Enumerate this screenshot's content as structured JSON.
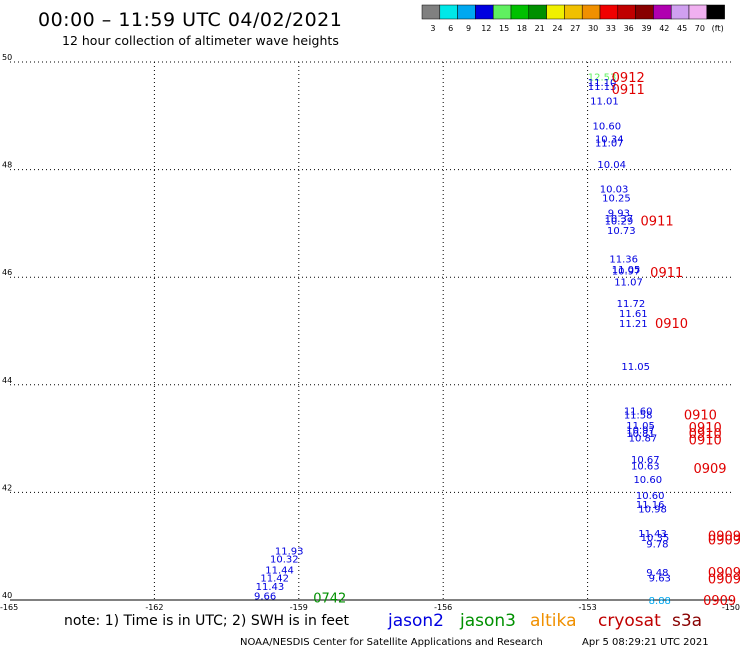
{
  "header": {
    "title": "00:00 – 11:59 UTC 04/02/2021",
    "subtitle": "12 hour collection of altimeter wave heights"
  },
  "legend_scale": {
    "labels": [
      "3",
      "6",
      "9",
      "12",
      "15",
      "18",
      "21",
      "24",
      "27",
      "30",
      "33",
      "36",
      "39",
      "42",
      "45",
      "70",
      "(ft)"
    ],
    "colors": [
      "#808080",
      "#00e8e8",
      "#00a8f0",
      "#0000e0",
      "#60f060",
      "#00c000",
      "#009000",
      "#f0f000",
      "#f0c000",
      "#f09000",
      "#f00000",
      "#c00000",
      "#880000",
      "#b000b0",
      "#d0a0f0",
      "#f0b0f0",
      "#000000"
    ]
  },
  "satellites": [
    {
      "name": "jason2",
      "color": "#0000e0"
    },
    {
      "name": "jason3",
      "color": "#009000"
    },
    {
      "name": "altika",
      "color": "#f09000"
    },
    {
      "name": "cryosat",
      "color": "#c00000"
    },
    {
      "name": "s3a",
      "color": "#880000"
    }
  ],
  "footer": {
    "note": "note: 1) Time is in UTC; 2) SWH is in feet",
    "credit": "NOAA/NESDIS Center for Satellite Applications and Research",
    "generated": "Apr  5 08:29:21 UTC 2021"
  },
  "chart_data": {
    "type": "scatter",
    "title": "00:00 – 11:59 UTC 04/02/2021",
    "subtitle": "12 hour collection of altimeter wave heights",
    "xlabel": "",
    "ylabel": "",
    "xlim": [
      -165,
      -150
    ],
    "ylim": [
      40,
      50
    ],
    "x_ticks": [
      "-165",
      "-162",
      "-159",
      "-156",
      "-153",
      "-150"
    ],
    "y_ticks": [
      "50",
      "48",
      "46",
      "44",
      "42",
      "40"
    ],
    "x_tick_values": [
      -165,
      -162,
      -159,
      -156,
      -153,
      -150
    ],
    "y_tick_values": [
      50,
      48,
      46,
      44,
      42,
      40
    ],
    "grid": true,
    "points": [
      {
        "lon": -152.7,
        "lat": 49.73,
        "label": "12.53",
        "color": "#60f060"
      },
      {
        "lon": -152.7,
        "lat": 49.63,
        "label": "11.10",
        "color": "#0000e0"
      },
      {
        "lon": -152.7,
        "lat": 49.55,
        "label": "11.13",
        "color": "#0000e0"
      },
      {
        "lon": -152.65,
        "lat": 49.28,
        "label": "11.01",
        "color": "#0000e0"
      },
      {
        "lon": -152.6,
        "lat": 48.82,
        "label": "10.60",
        "color": "#0000e0"
      },
      {
        "lon": -152.55,
        "lat": 48.58,
        "label": "10.34",
        "color": "#0000e0"
      },
      {
        "lon": -152.55,
        "lat": 48.5,
        "label": "11.07",
        "color": "#0000e0"
      },
      {
        "lon": -152.5,
        "lat": 48.1,
        "label": "10.04",
        "color": "#0000e0"
      },
      {
        "lon": -152.45,
        "lat": 47.65,
        "label": "10.03",
        "color": "#0000e0"
      },
      {
        "lon": -152.4,
        "lat": 47.48,
        "label": "10.25",
        "color": "#0000e0"
      },
      {
        "lon": -152.35,
        "lat": 47.2,
        "label": "9.93",
        "color": "#0000e0"
      },
      {
        "lon": -152.35,
        "lat": 47.1,
        "label": "10.37",
        "color": "#0000e0"
      },
      {
        "lon": -152.35,
        "lat": 47.05,
        "label": "10.29",
        "color": "#0000e0"
      },
      {
        "lon": -152.3,
        "lat": 46.88,
        "label": "10.73",
        "color": "#0000e0"
      },
      {
        "lon": -152.25,
        "lat": 46.35,
        "label": "11.36",
        "color": "#0000e0"
      },
      {
        "lon": -152.2,
        "lat": 46.15,
        "label": "11.05",
        "color": "#0000e0"
      },
      {
        "lon": -152.2,
        "lat": 46.12,
        "label": "10.97",
        "color": "#0000e0"
      },
      {
        "lon": -152.15,
        "lat": 45.92,
        "label": "11.07",
        "color": "#0000e0"
      },
      {
        "lon": -152.1,
        "lat": 45.52,
        "label": "11.72",
        "color": "#0000e0"
      },
      {
        "lon": -152.05,
        "lat": 45.33,
        "label": "11.61",
        "color": "#0000e0"
      },
      {
        "lon": -152.05,
        "lat": 45.15,
        "label": "11.21",
        "color": "#0000e0"
      },
      {
        "lon": -152.0,
        "lat": 44.35,
        "label": "11.05",
        "color": "#0000e0"
      },
      {
        "lon": -151.95,
        "lat": 43.52,
        "label": "11.60",
        "color": "#0000e0"
      },
      {
        "lon": -151.95,
        "lat": 43.45,
        "label": "11.58",
        "color": "#0000e0"
      },
      {
        "lon": -151.9,
        "lat": 43.25,
        "label": "11.05",
        "color": "#0000e0"
      },
      {
        "lon": -151.9,
        "lat": 43.17,
        "label": "10.97",
        "color": "#0000e0"
      },
      {
        "lon": -151.9,
        "lat": 43.1,
        "label": "10.81",
        "color": "#0000e0"
      },
      {
        "lon": -151.85,
        "lat": 43.02,
        "label": "10.87",
        "color": "#0000e0"
      },
      {
        "lon": -151.8,
        "lat": 42.62,
        "label": "10.67",
        "color": "#0000e0"
      },
      {
        "lon": -151.8,
        "lat": 42.5,
        "label": "10.63",
        "color": "#0000e0"
      },
      {
        "lon": -151.75,
        "lat": 42.25,
        "label": "10.60",
        "color": "#0000e0"
      },
      {
        "lon": -151.7,
        "lat": 41.95,
        "label": "10.60",
        "color": "#0000e0"
      },
      {
        "lon": -151.7,
        "lat": 41.78,
        "label": "11.16",
        "color": "#0000e0"
      },
      {
        "lon": -151.65,
        "lat": 41.7,
        "label": "10.98",
        "color": "#0000e0"
      },
      {
        "lon": -151.65,
        "lat": 41.25,
        "label": "11.43",
        "color": "#0000e0"
      },
      {
        "lon": -151.6,
        "lat": 41.17,
        "label": "10.35",
        "color": "#0000e0"
      },
      {
        "lon": -151.55,
        "lat": 41.05,
        "label": "9.78",
        "color": "#0000e0"
      },
      {
        "lon": -151.55,
        "lat": 40.52,
        "label": "9.48",
        "color": "#0000e0"
      },
      {
        "lon": -151.5,
        "lat": 40.42,
        "label": "9.63",
        "color": "#0000e0"
      },
      {
        "lon": -151.5,
        "lat": 40.0,
        "label": "8.88",
        "color": "#00a8f0"
      },
      {
        "lon": -159.2,
        "lat": 40.92,
        "label": "11.93",
        "color": "#0000e0"
      },
      {
        "lon": -159.3,
        "lat": 40.77,
        "label": "10.32",
        "color": "#0000e0"
      },
      {
        "lon": -159.4,
        "lat": 40.57,
        "label": "11.44",
        "color": "#0000e0"
      },
      {
        "lon": -159.5,
        "lat": 40.42,
        "label": "11.42",
        "color": "#0000e0"
      },
      {
        "lon": -159.6,
        "lat": 40.26,
        "label": "11.43",
        "color": "#0000e0"
      },
      {
        "lon": -159.7,
        "lat": 40.08,
        "label": "9.66",
        "color": "#0000e0"
      }
    ],
    "pass_times": [
      {
        "lon": -152.5,
        "lat": 49.72,
        "label": "0912",
        "color": "#e00000"
      },
      {
        "lon": -152.5,
        "lat": 49.5,
        "label": "0911",
        "color": "#e00000"
      },
      {
        "lon": -151.9,
        "lat": 47.05,
        "label": "0911",
        "color": "#e00000"
      },
      {
        "lon": -151.7,
        "lat": 46.1,
        "label": "0911",
        "color": "#e00000"
      },
      {
        "lon": -151.6,
        "lat": 45.15,
        "label": "0910",
        "color": "#e00000"
      },
      {
        "lon": -151.0,
        "lat": 43.45,
        "label": "0910",
        "color": "#e00000"
      },
      {
        "lon": -150.9,
        "lat": 43.22,
        "label": "0910",
        "color": "#e00000"
      },
      {
        "lon": -150.9,
        "lat": 43.1,
        "label": "0910",
        "color": "#e00000"
      },
      {
        "lon": -150.9,
        "lat": 42.98,
        "label": "0910",
        "color": "#e00000"
      },
      {
        "lon": -150.8,
        "lat": 42.45,
        "label": "0909",
        "color": "#e00000"
      },
      {
        "lon": -150.5,
        "lat": 41.2,
        "label": "0909",
        "color": "#e00000"
      },
      {
        "lon": -150.5,
        "lat": 41.12,
        "label": "0909",
        "color": "#e00000"
      },
      {
        "lon": -150.5,
        "lat": 40.52,
        "label": "0909",
        "color": "#e00000"
      },
      {
        "lon": -150.5,
        "lat": 40.4,
        "label": "0909",
        "color": "#e00000"
      },
      {
        "lon": -150.6,
        "lat": 40.0,
        "label": "0909",
        "color": "#e00000"
      },
      {
        "lon": -158.7,
        "lat": 40.05,
        "label": "0742",
        "color": "#009000"
      }
    ]
  }
}
